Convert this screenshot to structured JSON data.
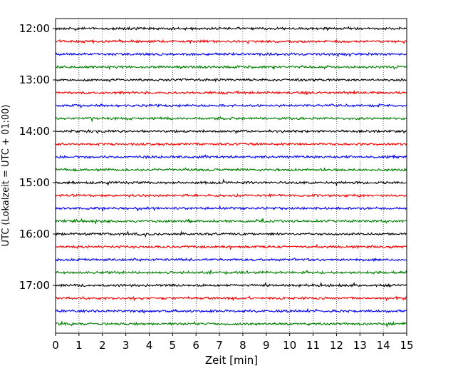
{
  "chart_data": {
    "type": "line",
    "subtype": "helicorder",
    "title": "",
    "xlabel": "Zeit  [min]",
    "ylabel": "UTC (Lokalzeit = UTC + 01:00)",
    "xlim": [
      0,
      15
    ],
    "x_ticks": [
      "0",
      "1",
      "2",
      "3",
      "4",
      "5",
      "6",
      "7",
      "8",
      "9",
      "10",
      "11",
      "12",
      "13",
      "14",
      "15"
    ],
    "y_ticks": [
      "12:00",
      "13:00",
      "14:00",
      "15:00",
      "16:00",
      "17:00"
    ],
    "trace_interval_minutes": 15,
    "start_time": "12:00",
    "trace_start_times": [
      "12:00",
      "12:15",
      "12:30",
      "12:45",
      "13:00",
      "13:15",
      "13:30",
      "13:45",
      "14:00",
      "14:15",
      "14:30",
      "14:45",
      "15:00",
      "15:15",
      "15:30",
      "15:45",
      "16:00",
      "16:15",
      "16:30",
      "16:45",
      "17:00",
      "17:15",
      "17:30",
      "17:45"
    ],
    "trace_colors": [
      "#000000",
      "#ff0000",
      "#0000ff",
      "#008000"
    ],
    "grid": "vertical dotted"
  }
}
